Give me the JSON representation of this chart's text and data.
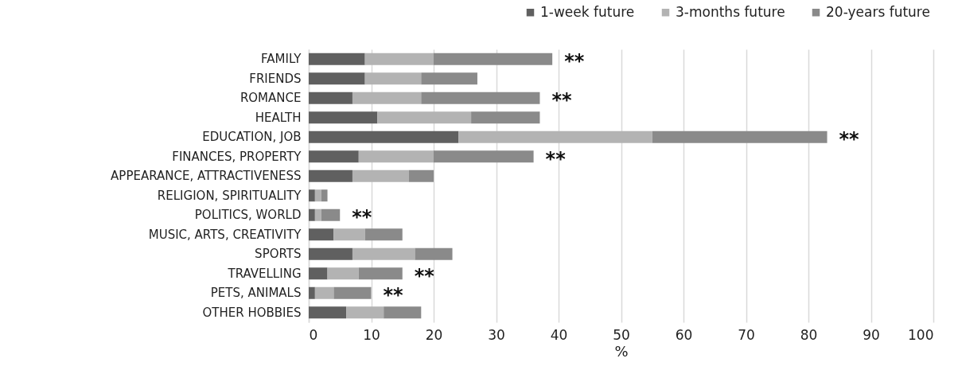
{
  "chart_data": {
    "type": "bar",
    "orientation": "horizontal",
    "stacked": true,
    "xlabel": "%",
    "categories": [
      "FAMILY",
      "FRIENDS",
      "ROMANCE",
      "HEALTH",
      "EDUCATION, JOB",
      "FINANCES, PROPERTY",
      "APPEARANCE, ATTRACTIVENESS",
      "RELIGION, SPIRITUALITY",
      "POLITICS, WORLD",
      "MUSIC, ARTS, CREATIVITY",
      "SPORTS",
      "TRAVELLING",
      "PETS, ANIMALS",
      "OTHER HOBBIES"
    ],
    "series": [
      {
        "name": "1-week future",
        "color": "#606060",
        "values": [
          9,
          9,
          7,
          11,
          24,
          8,
          7,
          1,
          1,
          4,
          7,
          3,
          1,
          6
        ]
      },
      {
        "name": "3-months future",
        "color": "#b3b3b3",
        "values": [
          11,
          9,
          11,
          15,
          31,
          12,
          9,
          1,
          1,
          5,
          10,
          5,
          3,
          6
        ]
      },
      {
        "name": "20-years future",
        "color": "#8a8a8a",
        "values": [
          19,
          9,
          19,
          11,
          28,
          16,
          4,
          1,
          3,
          6,
          6,
          7,
          6,
          6
        ]
      }
    ],
    "xlim": [
      0,
      100
    ],
    "xticks": [
      0,
      10,
      20,
      30,
      40,
      50,
      60,
      70,
      80,
      90,
      100
    ],
    "grid": "x",
    "legend": "top right",
    "annotations": [
      {
        "text": "**",
        "x": 39,
        "y": "FAMILY"
      },
      {
        "text": "**",
        "x": 37,
        "y": "ROMANCE"
      },
      {
        "text": "**",
        "x": 83,
        "y": "EDUCATION, JOB"
      },
      {
        "text": "**",
        "x": 36,
        "y": "FINANCES, PROPERTY"
      },
      {
        "text": "**",
        "x": 5,
        "y": "POLITICS, WORLD"
      },
      {
        "text": "**",
        "x": 15,
        "y": "TRAVELLING"
      },
      {
        "text": "**",
        "x": 10,
        "y": "PETS, ANIMALS"
      }
    ]
  }
}
